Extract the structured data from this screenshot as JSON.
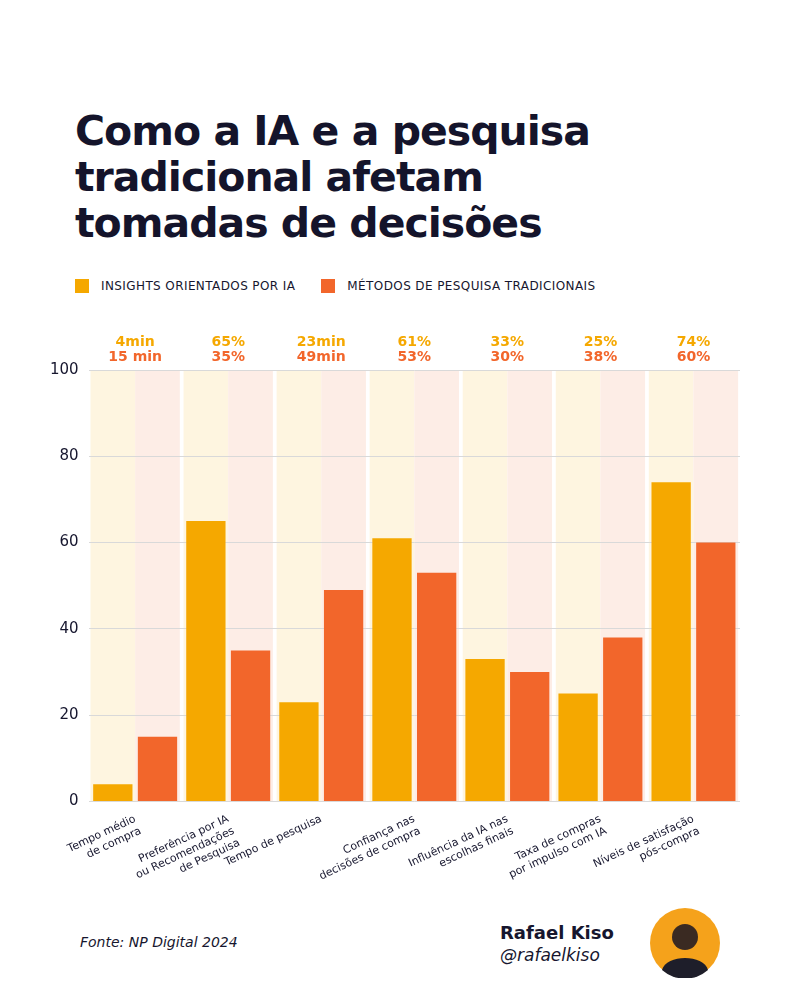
{
  "chart_data": {
    "type": "bar",
    "title": "Como a IA e a pesquisa tradicional afetam tomadas de decisões",
    "categories": [
      "Tempo médio\nde compra",
      "Preferência por IA\nou Recomendações\nde Pesquisa",
      "Tempo de pesquisa",
      "Confiança nas\ndecisões de compra",
      "Influência da IA nas\nescolhas finais",
      "Taxa de compras\npor impulso com IA",
      "Níveis de satisfação\npós-compra"
    ],
    "series": [
      {
        "name": "INSIGHTS ORIENTADOS POR IA",
        "color": "#f5a800",
        "values": [
          4,
          65,
          23,
          61,
          33,
          25,
          74
        ],
        "value_labels": [
          "4min",
          "65%",
          "23min",
          "61%",
          "33%",
          "25%",
          "74%"
        ]
      },
      {
        "name": "MÉTODOS DE PESQUISA TRADICIONAIS",
        "color": "#f2662b",
        "values": [
          15,
          35,
          49,
          53,
          30,
          38,
          60
        ],
        "value_labels": [
          "15 min",
          "35%",
          "49min",
          "53%",
          "30%",
          "38%",
          "60%"
        ]
      }
    ],
    "ylim": [
      0,
      100
    ],
    "yticks": [
      0,
      20,
      40,
      60,
      80,
      100
    ],
    "grid": true,
    "legend": "top left",
    "data_labels": true,
    "source": "Fonte: NP Digital 2024",
    "author": {
      "name": "Rafael Kiso",
      "handle": "@rafaelkiso"
    }
  }
}
